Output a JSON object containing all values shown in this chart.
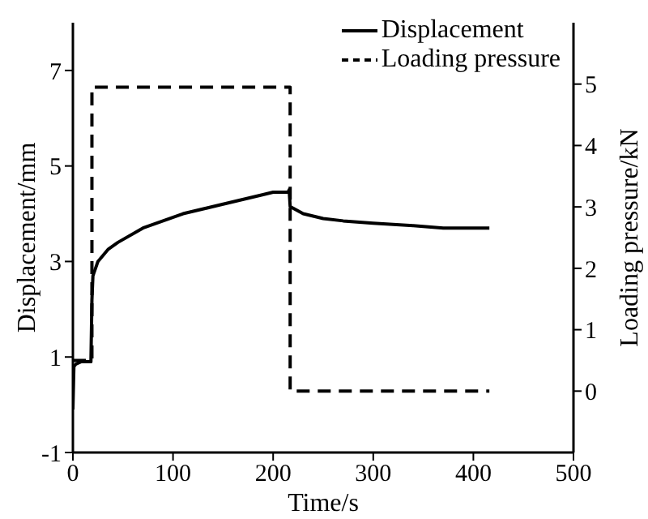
{
  "chart_data": {
    "type": "line",
    "xlabel": "Time/s",
    "ylabel": "Displacement/mm",
    "y2label": "Loading pressure/kN",
    "xlim": [
      0,
      500
    ],
    "xticks": [
      0,
      100,
      200,
      300,
      400,
      500
    ],
    "ylim": [
      -1,
      8
    ],
    "yticks": [
      -1,
      1,
      3,
      5,
      7
    ],
    "y2lim": [
      -1,
      6
    ],
    "y2ticks": [
      0,
      1,
      2,
      3,
      4,
      5
    ],
    "legend": "top right",
    "grid": false,
    "marker": "none",
    "series": [
      {
        "name": "Displacement",
        "color": "#000000",
        "line_style": "solid",
        "x": [
          0,
          1,
          3,
          8,
          18,
          19,
          20,
          25,
          35,
          45,
          70,
          110,
          150,
          190,
          200,
          215,
          216,
          217,
          230,
          250,
          270,
          300,
          340,
          370,
          416
        ],
        "values": [
          -0.1,
          0.8,
          0.85,
          0.9,
          0.9,
          2.2,
          2.7,
          3.0,
          3.25,
          3.4,
          3.7,
          4.0,
          4.2,
          4.4,
          4.45,
          4.45,
          4.5,
          4.15,
          4.0,
          3.9,
          3.85,
          3.8,
          3.75,
          3.7,
          3.7
        ]
      },
      {
        "name": "Loading pressure",
        "color": "#000000",
        "line_style": "dashed",
        "axis": "y2",
        "x": [
          0,
          19,
          19,
          217,
          217,
          416
        ],
        "values": [
          0.5,
          0.5,
          4.95,
          4.95,
          0,
          0
        ]
      }
    ]
  }
}
